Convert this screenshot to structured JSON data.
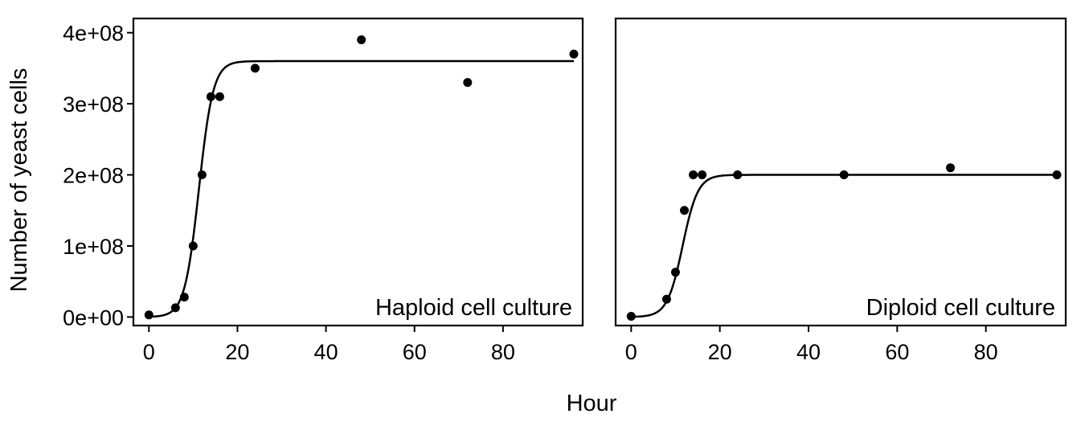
{
  "chart_data": {
    "type": "scatter",
    "xlabel": "Hour",
    "ylabel": "Number of yeast cells",
    "xlim": [
      -3.5,
      98
    ],
    "ylim": [
      -12000000.0,
      420000000.0
    ],
    "xticks": [
      0,
      20,
      40,
      60,
      80
    ],
    "xtick_labels": [
      "0",
      "20",
      "40",
      "60",
      "80"
    ],
    "yticks": [
      0,
      100000000,
      200000000,
      300000000,
      400000000
    ],
    "ytick_labels": [
      "0e+00",
      "1e+08",
      "2e+08",
      "3e+08",
      "4e+08"
    ],
    "grid": false,
    "panels": [
      {
        "label": "Haploid cell culture",
        "points": {
          "x": [
            0,
            6,
            8,
            10,
            12,
            14,
            16,
            24,
            48,
            72,
            96
          ],
          "y": [
            3000000,
            13000000,
            28000000,
            100000000,
            200000000,
            310000000,
            310000000,
            350000000,
            390000000,
            330000000,
            370000000
          ]
        },
        "fit": {
          "model": "logistic",
          "K": 360000000,
          "r": 0.62,
          "t0": 11.3
        }
      },
      {
        "label": "Diploid cell culture",
        "points": {
          "x": [
            0,
            8,
            10,
            12,
            14,
            16,
            24,
            48,
            72,
            96
          ],
          "y": [
            1000000,
            25000000,
            63000000,
            150000000,
            200000000,
            200000000,
            200000000,
            200000000,
            210000000,
            200000000
          ]
        },
        "fit": {
          "model": "logistic",
          "K": 200000000,
          "r": 0.58,
          "t0": 11.6
        }
      }
    ]
  }
}
